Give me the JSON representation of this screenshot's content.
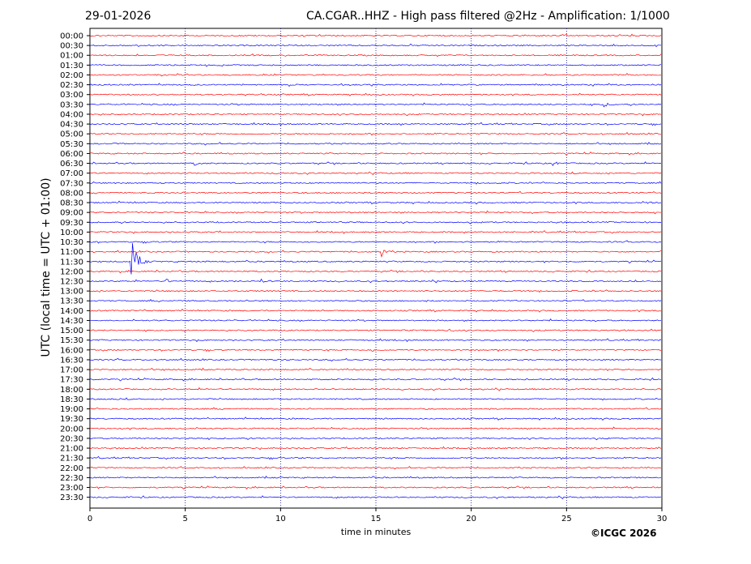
{
  "header": {
    "date": "29-01-2026",
    "station_title": "CA.CGAR..HHZ - High pass filtered @2Hz - Amplification: 1/1000"
  },
  "footer": {
    "copyright": "©ICGC 2026"
  },
  "colors": {
    "trace_a": "#ff0000",
    "trace_b": "#0000ff",
    "grid": "#00008b"
  },
  "chart_data": {
    "type": "line",
    "title": "CA.CGAR..HHZ - High pass filtered @2Hz - Amplification: 1/1000",
    "xlabel": "time in minutes",
    "ylabel": "UTC (local time = UTC + 01:00)",
    "xlim": [
      0,
      30
    ],
    "x_ticks": [
      0,
      5,
      10,
      15,
      20,
      25,
      30
    ],
    "vertical_grid": "dotted",
    "rows": [
      "00:00",
      "00:30",
      "01:00",
      "01:30",
      "02:00",
      "02:30",
      "03:00",
      "03:30",
      "04:00",
      "04:30",
      "05:00",
      "05:30",
      "06:00",
      "06:30",
      "07:00",
      "07:30",
      "08:00",
      "08:30",
      "09:00",
      "09:30",
      "10:00",
      "10:30",
      "11:00",
      "11:30",
      "12:00",
      "12:30",
      "13:00",
      "13:30",
      "14:00",
      "14:30",
      "15:00",
      "15:30",
      "16:00",
      "16:30",
      "17:00",
      "17:30",
      "18:00",
      "18:30",
      "19:00",
      "19:30",
      "20:00",
      "20:30",
      "21:00",
      "21:30",
      "22:00",
      "22:30",
      "23:00",
      "23:30"
    ],
    "row_colors": "alternating red / blue",
    "events": [
      {
        "row": "11:30",
        "minute": 2.2,
        "amplitude": "large"
      },
      {
        "row": "11:00",
        "minute": 15.3,
        "amplitude": "medium"
      },
      {
        "row": "12:30",
        "minute": 4.0,
        "amplitude": "small"
      },
      {
        "row": "12:30",
        "minute": 9.0,
        "amplitude": "small"
      },
      {
        "row": "03:30",
        "minute": 27.0,
        "amplitude": "small"
      },
      {
        "row": "06:30",
        "minute": 24.3,
        "amplitude": "small"
      },
      {
        "row": "06:30",
        "minute": 5.5,
        "amplitude": "small"
      },
      {
        "row": "15:00",
        "minute": 18.7,
        "amplitude": "small"
      },
      {
        "row": "16:00",
        "minute": 14.8,
        "amplitude": "small"
      },
      {
        "row": "08:30",
        "minute": 29.2,
        "amplitude": "small"
      }
    ]
  }
}
